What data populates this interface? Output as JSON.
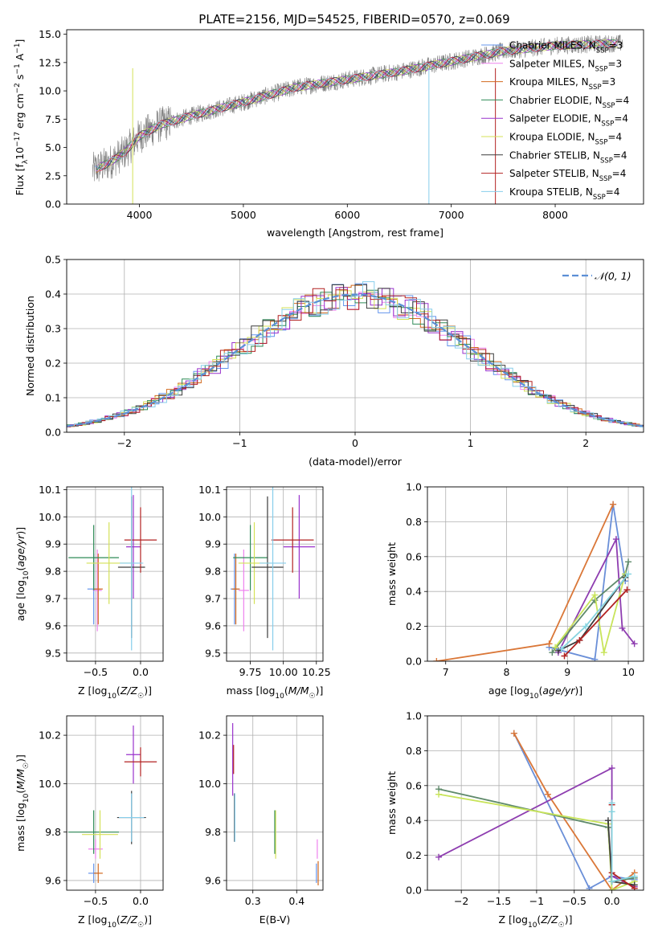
{
  "figure": {
    "title": "PLATE=2156, MJD=54525, FIBERID=0570, z=0.069"
  },
  "colors": {
    "data": "#808080",
    "series": [
      "#6495ed",
      "#ee82ee",
      "#d2691e",
      "#2e8b57",
      "#9932cc",
      "#d4e157",
      "#3c3c3c",
      "#b22222",
      "#87ceeb"
    ],
    "weights": [
      "#6a8fd8",
      "#da7738",
      "#8e3db0",
      "#5f8a6b",
      "#c8e45a",
      "#3c3c3c",
      "#b22222",
      "#87d4e0"
    ],
    "gaussian": "#5b8fd6"
  },
  "chart_data": [
    {
      "id": "spectrum",
      "type": "line",
      "xlabel": "wavelength [Angstrom, rest frame]",
      "ylabel": "Flux [f_λ 10^-17 erg cm^-2 s^-1 A^-1]",
      "xlim": [
        3300,
        8850
      ],
      "ylim": [
        0,
        15.4
      ],
      "xticks": [
        4000,
        5000,
        6000,
        7000,
        8000
      ],
      "yticks": [
        0.0,
        2.5,
        5.0,
        7.5,
        10.0,
        12.5,
        15.0
      ],
      "legend_position": "right",
      "legend": [
        {
          "base": "Chabrier MILES, N",
          "sub": "SSP",
          "tail": "=3"
        },
        {
          "base": "Salpeter MILES, N",
          "sub": "SSP",
          "tail": "=3"
        },
        {
          "base": "Kroupa MILES, N",
          "sub": "SSP",
          "tail": "=3"
        },
        {
          "base": "Chabrier ELODIE, N",
          "sub": "SSP",
          "tail": "=4"
        },
        {
          "base": "Salpeter ELODIE, N",
          "sub": "SSP",
          "tail": "=4"
        },
        {
          "base": "Kroupa ELODIE, N",
          "sub": "SSP",
          "tail": "=4"
        },
        {
          "base": "Chabrier STELIB, N",
          "sub": "SSP",
          "tail": "=4"
        },
        {
          "base": "Salpeter STELIB, N",
          "sub": "SSP",
          "tail": "=4"
        },
        {
          "base": "Kroupa STELIB, N",
          "sub": "SSP",
          "tail": "=4"
        }
      ],
      "continuum": {
        "x": [
          3550,
          3700,
          3850,
          4000,
          4200,
          4500,
          5000,
          5500,
          6000,
          6500,
          7000,
          7500,
          8000,
          8600
        ],
        "y": [
          3.0,
          3.6,
          4.5,
          6.0,
          7.0,
          7.8,
          9.0,
          10.3,
          11.0,
          11.7,
          12.6,
          13.5,
          14.0,
          14.2
        ]
      }
    },
    {
      "id": "residuals",
      "type": "bar",
      "xlabel": "(data-model)/error",
      "ylabel": "Normed distribution",
      "xlim": [
        -2.5,
        2.5
      ],
      "ylim": [
        0,
        0.5
      ],
      "xticks": [
        -2,
        -1,
        0,
        1,
        2
      ],
      "yticks": [
        0.0,
        0.1,
        0.2,
        0.3,
        0.4,
        0.5
      ],
      "legend_label": "𝒩(0, 1)",
      "grid": true
    },
    {
      "id": "age_vs_Z",
      "type": "scatter",
      "xlabel": "Z [log10(Z/Z☉)]",
      "ylabel": "age  [log10(age/yr)]",
      "xlim": [
        -0.82,
        0.25
      ],
      "ylim": [
        9.47,
        10.11
      ],
      "xticks": [
        -0.5,
        0.0
      ],
      "yticks": [
        9.5,
        9.6,
        9.7,
        9.8,
        9.9,
        10.0,
        10.1
      ],
      "points": [
        {
          "x": -0.52,
          "y": 9.735,
          "xerr": 0.07,
          "yerr": 0.13,
          "c": 0
        },
        {
          "x": -0.48,
          "y": 9.73,
          "xerr": 0.05,
          "yerr": 0.15,
          "c": 1
        },
        {
          "x": -0.47,
          "y": 9.735,
          "xerr": 0.05,
          "yerr": 0.13,
          "c": 2
        },
        {
          "x": -0.52,
          "y": 9.85,
          "xerr": 0.28,
          "yerr": 0.12,
          "c": 3
        },
        {
          "x": -0.35,
          "y": 9.83,
          "xerr": 0.25,
          "yerr": 0.15,
          "c": 5
        },
        {
          "x": -0.08,
          "y": 9.89,
          "xerr": 0.08,
          "yerr": 0.19,
          "c": 4
        },
        {
          "x": -0.1,
          "y": 9.815,
          "xerr": 0.15,
          "yerr": 0.26,
          "c": 6
        },
        {
          "x": 0.0,
          "y": 9.915,
          "xerr": 0.18,
          "yerr": 0.12,
          "c": 7
        },
        {
          "x": -0.1,
          "y": 9.83,
          "xerr": 0.13,
          "yerr": 0.32,
          "c": 8
        }
      ]
    },
    {
      "id": "age_vs_mass",
      "type": "scatter",
      "xlabel": "mass [log10(M/M☉)]",
      "xlim": [
        9.57,
        10.3
      ],
      "ylim": [
        9.47,
        10.11
      ],
      "xticks": [
        9.75,
        10.0,
        10.25
      ],
      "yticks": [
        9.5,
        9.6,
        9.7,
        9.8,
        9.9,
        10.0,
        10.1
      ],
      "points": [
        {
          "x": 9.63,
          "y": 9.735,
          "xerr": 0.03,
          "yerr": 0.13,
          "c": 0
        },
        {
          "x": 9.7,
          "y": 9.73,
          "xerr": 0.04,
          "yerr": 0.15,
          "c": 1
        },
        {
          "x": 9.64,
          "y": 9.735,
          "xerr": 0.03,
          "yerr": 0.13,
          "c": 2
        },
        {
          "x": 9.75,
          "y": 9.85,
          "xerr": 0.13,
          "yerr": 0.12,
          "c": 3
        },
        {
          "x": 9.78,
          "y": 9.83,
          "xerr": 0.12,
          "yerr": 0.15,
          "c": 5
        },
        {
          "x": 10.12,
          "y": 9.89,
          "xerr": 0.12,
          "yerr": 0.19,
          "c": 4
        },
        {
          "x": 9.88,
          "y": 9.815,
          "xerr": 0.12,
          "yerr": 0.26,
          "c": 6
        },
        {
          "x": 10.07,
          "y": 9.915,
          "xerr": 0.16,
          "yerr": 0.12,
          "c": 7
        },
        {
          "x": 9.92,
          "y": 9.83,
          "xerr": 0.1,
          "yerr": 0.32,
          "c": 8
        }
      ]
    },
    {
      "id": "weight_vs_age",
      "type": "line",
      "xlabel": "age  [log10(age/yr)]",
      "ylabel": "mass weight",
      "xlim": [
        6.7,
        10.25
      ],
      "ylim": [
        0,
        1.0
      ],
      "xticks": [
        7,
        8,
        9,
        10
      ],
      "yticks": [
        0.0,
        0.2,
        0.4,
        0.6,
        0.8,
        1.0
      ],
      "series": [
        {
          "c": 0,
          "x": [
            8.7,
            9.45,
            9.75,
            9.95
          ],
          "y": [
            0.08,
            0.01,
            0.9,
            0.46
          ]
        },
        {
          "c": 1,
          "x": [
            6.85,
            8.7,
            9.75
          ],
          "y": [
            0.0,
            0.1,
            0.9
          ]
        },
        {
          "c": 2,
          "x": [
            8.85,
            9.8,
            9.9,
            10.1
          ],
          "y": [
            0.05,
            0.7,
            0.19,
            0.1
          ]
        },
        {
          "c": 3,
          "x": [
            8.75,
            9.45,
            9.95,
            10.0
          ],
          "y": [
            0.05,
            0.35,
            0.5,
            0.57
          ]
        },
        {
          "c": 4,
          "x": [
            8.8,
            9.45,
            9.6,
            9.95
          ],
          "y": [
            0.08,
            0.38,
            0.05,
            0.5
          ]
        },
        {
          "c": 5,
          "x": [
            8.85,
            9.2,
            9.95
          ],
          "y": [
            0.06,
            0.12,
            0.48
          ]
        },
        {
          "c": 6,
          "x": [
            8.95,
            9.2,
            9.98
          ],
          "y": [
            0.03,
            0.12,
            0.41
          ]
        },
        {
          "c": 7,
          "x": [
            8.9,
            9.3,
            10.0
          ],
          "y": [
            0.07,
            0.2,
            0.5
          ]
        }
      ]
    },
    {
      "id": "mass_vs_Z",
      "type": "scatter",
      "xlabel": "Z [log10(Z/Z☉)]",
      "ylabel": "mass [log10(M/M☉)]",
      "xlim": [
        -0.82,
        0.25
      ],
      "ylim": [
        9.56,
        10.28
      ],
      "xticks": [
        -0.5,
        0.0
      ],
      "yticks": [
        9.6,
        9.8,
        10.0,
        10.2
      ],
      "points": [
        {
          "x": -0.52,
          "y": 9.63,
          "xerr": 0.06,
          "yerr": 0.04,
          "c": 0
        },
        {
          "x": -0.5,
          "y": 9.73,
          "xerr": 0.08,
          "yerr": 0.04,
          "c": 1
        },
        {
          "x": -0.47,
          "y": 9.63,
          "xerr": 0.05,
          "yerr": 0.04,
          "c": 2
        },
        {
          "x": -0.52,
          "y": 9.8,
          "xerr": 0.28,
          "yerr": 0.09,
          "c": 3
        },
        {
          "x": -0.45,
          "y": 9.79,
          "xerr": 0.2,
          "yerr": 0.1,
          "c": 5
        },
        {
          "x": -0.08,
          "y": 10.12,
          "xerr": 0.08,
          "yerr": 0.12,
          "c": 4
        },
        {
          "x": -0.1,
          "y": 9.86,
          "xerr": 0.16,
          "yerr": 0.11,
          "c": 6
        },
        {
          "x": 0.0,
          "y": 10.09,
          "xerr": 0.18,
          "yerr": 0.06,
          "c": 7
        },
        {
          "x": -0.1,
          "y": 9.86,
          "xerr": 0.14,
          "yerr": 0.1,
          "c": 8
        }
      ]
    },
    {
      "id": "mass_vs_ebv",
      "type": "scatter",
      "xlabel": "E(B-V)",
      "xlim": [
        0.24,
        0.46
      ],
      "ylim": [
        9.56,
        10.28
      ],
      "xticks": [
        0.3,
        0.4
      ],
      "yticks": [
        9.6,
        9.8,
        10.0,
        10.2
      ],
      "points": [
        {
          "x": 0.254,
          "y": 10.1,
          "yerr": 0.15,
          "c": 4
        },
        {
          "x": 0.256,
          "y": 10.1,
          "yerr": 0.06,
          "c": 7
        },
        {
          "x": 0.258,
          "y": 9.86,
          "yerr": 0.1,
          "c": 6
        },
        {
          "x": 0.259,
          "y": 9.86,
          "yerr": 0.1,
          "c": 8
        },
        {
          "x": 0.35,
          "y": 9.8,
          "yerr": 0.09,
          "c": 3
        },
        {
          "x": 0.352,
          "y": 9.79,
          "yerr": 0.1,
          "c": 5
        },
        {
          "x": 0.445,
          "y": 9.63,
          "yerr": 0.04,
          "c": 0
        },
        {
          "x": 0.447,
          "y": 9.73,
          "yerr": 0.04,
          "c": 1
        },
        {
          "x": 0.449,
          "y": 9.63,
          "yerr": 0.05,
          "c": 2
        }
      ]
    },
    {
      "id": "weight_vs_Z",
      "type": "line",
      "xlabel": "Z [log10(Z/Z☉)]",
      "ylabel": "mass weight",
      "xlim": [
        -2.45,
        0.42
      ],
      "ylim": [
        0,
        1.0
      ],
      "xticks": [
        -2.0,
        -1.5,
        -1.0,
        -0.5,
        0.0
      ],
      "yticks": [
        0.0,
        0.2,
        0.4,
        0.6,
        0.8,
        1.0
      ],
      "series": [
        {
          "c": 0,
          "x": [
            -1.3,
            -0.3,
            0.0,
            0.3
          ],
          "y": [
            0.9,
            0.01,
            0.08,
            0.06
          ]
        },
        {
          "c": 1,
          "x": [
            -1.3,
            -0.85,
            0.0,
            0.3
          ],
          "y": [
            0.9,
            0.55,
            0.0,
            0.1
          ]
        },
        {
          "c": 2,
          "x": [
            -2.3,
            0.0,
            0.0,
            0.3
          ],
          "y": [
            0.19,
            0.7,
            0.08,
            0.02
          ]
        },
        {
          "c": 3,
          "x": [
            -2.3,
            -0.05,
            0.0,
            0.3
          ],
          "y": [
            0.58,
            0.36,
            0.05,
            0.07
          ]
        },
        {
          "c": 4,
          "x": [
            -2.3,
            -0.05,
            0.0,
            0.3
          ],
          "y": [
            0.55,
            0.38,
            0.0,
            0.05
          ]
        },
        {
          "c": 5,
          "x": [
            -0.05,
            0.0,
            0.3
          ],
          "y": [
            0.4,
            0.05,
            0.03
          ]
        },
        {
          "c": 6,
          "x": [
            0.0,
            0.0,
            0.3
          ],
          "y": [
            0.49,
            0.1,
            0.01
          ]
        },
        {
          "c": 7,
          "x": [
            0.0,
            0.0,
            0.0,
            0.3
          ],
          "y": [
            0.5,
            0.45,
            0.05,
            0.08
          ]
        }
      ]
    }
  ]
}
